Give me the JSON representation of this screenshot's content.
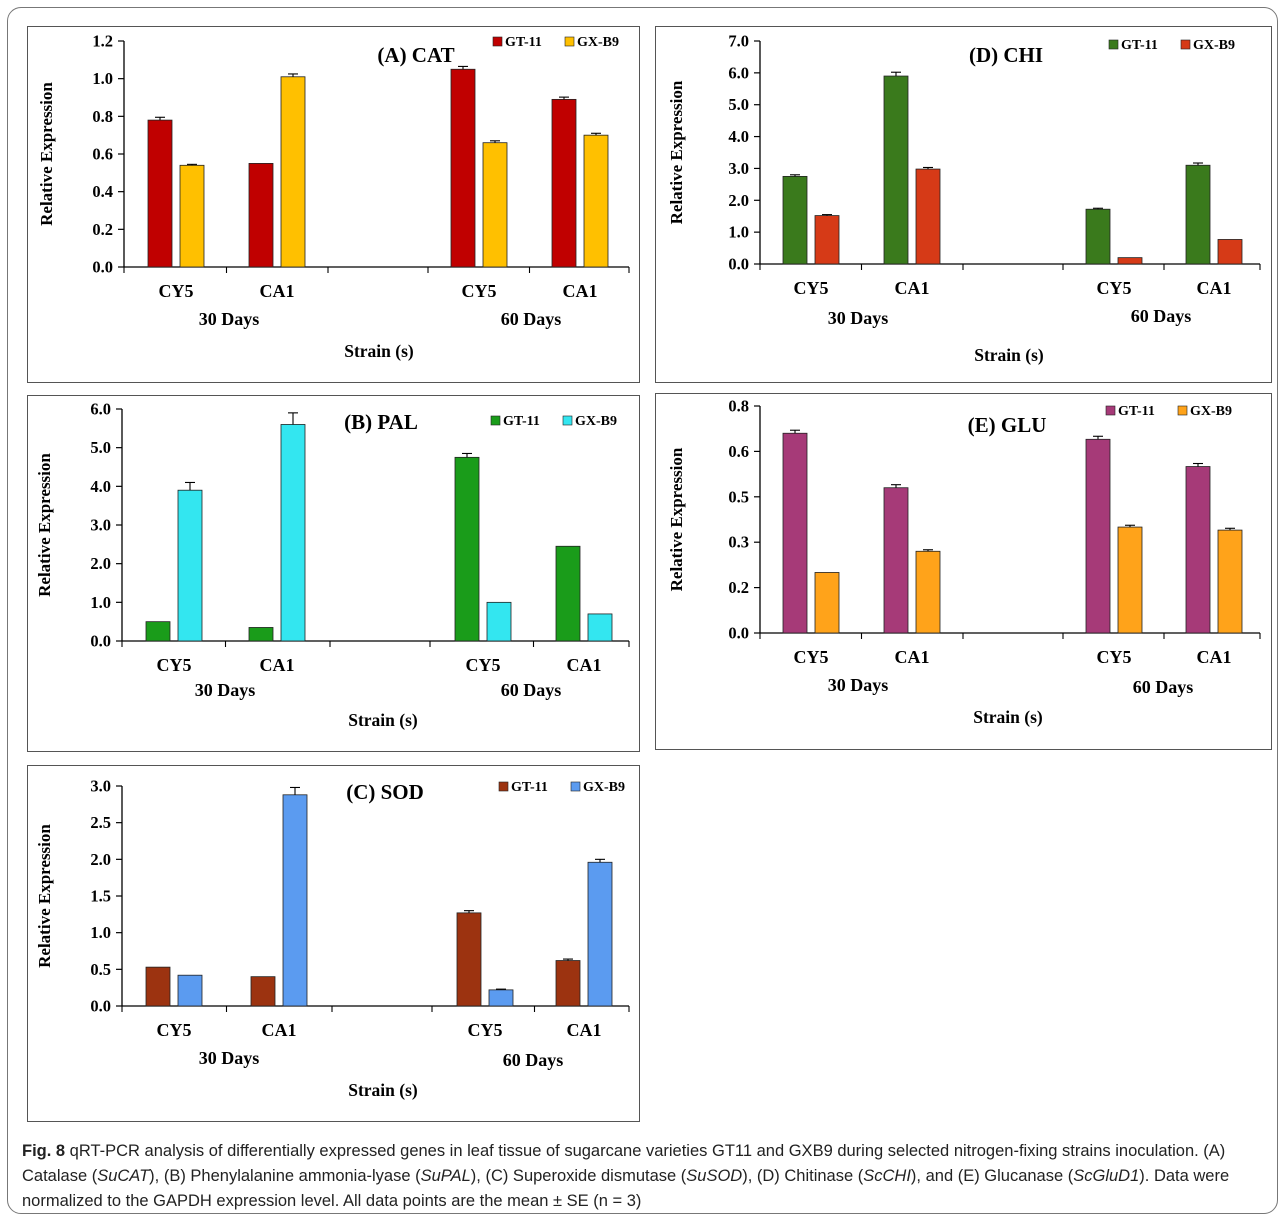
{
  "figure": {
    "caption": {
      "label": "Fig. 8",
      "parts": [
        {
          "t": " qRT-PCR analysis of differentially expressed genes in leaf tissue of sugarcane varieties GT11 and GXB9 during selected nitrogen-fixing strains inoculation. (A) Catalase (",
          "i": false
        },
        {
          "t": "SuCAT",
          "i": true
        },
        {
          "t": "), (B) Phenylalanine ammonia-lyase (",
          "i": false
        },
        {
          "t": "SuPAL",
          "i": true
        },
        {
          "t": "), (C) Superoxide dismutase (",
          "i": false
        },
        {
          "t": "SuSOD",
          "i": true
        },
        {
          "t": "), (D) Chitinase (",
          "i": false
        },
        {
          "t": "ScCHI",
          "i": true
        },
        {
          "t": "), and (E) Glucanase (",
          "i": false
        },
        {
          "t": "ScGluD1",
          "i": true
        },
        {
          "t": "). Data were normalized to the GAPDH expression level. All data points are the mean ± SE (n = 3)",
          "i": false
        }
      ]
    }
  },
  "chart_data": [
    {
      "id": "A",
      "type": "bar",
      "title": "(A) CAT",
      "ylabel": "Relative Expression",
      "xlabel": "Strain  (s)",
      "groups": [
        "30 Days",
        "60 Days"
      ],
      "categories": [
        "CY5",
        "CA1",
        "CY5",
        "CA1"
      ],
      "ylim": [
        0,
        1.2
      ],
      "yticks": [
        "0.0",
        "0.2",
        "0.4",
        "0.6",
        "0.8",
        "1.0",
        "1.2"
      ],
      "series": [
        {
          "name": "GT-11",
          "color": "#c00000",
          "values": [
            0.78,
            0.55,
            1.05,
            0.89
          ],
          "errors": [
            0.015,
            0.0,
            0.015,
            0.012
          ]
        },
        {
          "name": "GX-B9",
          "color": "#ffc000",
          "values": [
            0.54,
            1.01,
            0.66,
            0.7
          ],
          "errors": [
            0.005,
            0.015,
            0.01,
            0.01
          ]
        }
      ]
    },
    {
      "id": "B",
      "type": "bar",
      "title": "(B) PAL",
      "ylabel": "Relative Expression",
      "xlabel": "Strain  (s)",
      "groups": [
        "30 Days",
        "60 Days"
      ],
      "categories": [
        "CY5",
        "CA1",
        "CY5",
        "CA1"
      ],
      "ylim": [
        0,
        6.0
      ],
      "yticks": [
        "0.0",
        "1.0",
        "2.0",
        "3.0",
        "4.0",
        "5.0",
        "6.0"
      ],
      "series": [
        {
          "name": "GT-11",
          "color": "#1a9c1a",
          "values": [
            0.5,
            0.35,
            4.75,
            2.45
          ],
          "errors": [
            0.0,
            0.0,
            0.1,
            0.0
          ]
        },
        {
          "name": "GX-B9",
          "color": "#33e6f0",
          "values": [
            3.9,
            5.6,
            1.0,
            0.7
          ],
          "errors": [
            0.2,
            0.3,
            0.0,
            0.0
          ]
        }
      ]
    },
    {
      "id": "C",
      "type": "bar",
      "title": "(C) SOD",
      "ylabel": "Relative Expression",
      "xlabel": "Strain  (s)",
      "groups": [
        "30 Days",
        "60 Days"
      ],
      "categories": [
        "CY5",
        "CA1",
        "CY5",
        "CA1"
      ],
      "ylim": [
        0,
        3.0
      ],
      "yticks": [
        "0.0",
        "0.5",
        "1.0",
        "1.5",
        "2.0",
        "2.5",
        "3.0"
      ],
      "series": [
        {
          "name": "GT-11",
          "color": "#9c3310",
          "values": [
            0.53,
            0.4,
            1.27,
            0.62
          ],
          "errors": [
            0.0,
            0.0,
            0.03,
            0.02
          ]
        },
        {
          "name": "GX-B9",
          "color": "#5b9bf0",
          "values": [
            0.42,
            2.88,
            0.22,
            1.96
          ],
          "errors": [
            0.0,
            0.1,
            0.01,
            0.04
          ]
        }
      ]
    },
    {
      "id": "D",
      "type": "bar",
      "title": "(D) CHI",
      "ylabel": "Relative Expression",
      "xlabel": "Strain  (s)",
      "groups": [
        "30 Days",
        "60 Days"
      ],
      "categories": [
        "CY5",
        "CA1",
        "CY5",
        "CA1"
      ],
      "ylim": [
        0,
        7.0
      ],
      "yticks": [
        "0.0",
        "1.0",
        "2.0",
        "3.0",
        "4.0",
        "5.0",
        "6.0",
        "7.0"
      ],
      "series": [
        {
          "name": "GT-11",
          "color": "#3a7a1c",
          "values": [
            2.75,
            5.9,
            1.72,
            3.1
          ],
          "errors": [
            0.05,
            0.12,
            0.03,
            0.07
          ]
        },
        {
          "name": "GX-B9",
          "color": "#d63a17",
          "values": [
            1.52,
            2.98,
            0.2,
            0.77
          ],
          "errors": [
            0.03,
            0.05,
            0.0,
            0.0
          ]
        }
      ]
    },
    {
      "id": "E",
      "type": "bar",
      "title": "(E) GLU",
      "ylabel": "Relative Expression",
      "xlabel": "Strain  (s)",
      "groups": [
        "30 Days",
        "60 Days"
      ],
      "categories": [
        "CY5",
        "CA1",
        "CY5",
        "CA1"
      ],
      "ylim": [
        0,
        0.75
      ],
      "yticks": [
        "0.0",
        "0.2",
        "0.3",
        "0.5",
        "0.6",
        "0.8"
      ],
      "series": [
        {
          "name": "GT-11",
          "color": "#a63a78",
          "values": [
            0.66,
            0.48,
            0.64,
            0.55
          ],
          "errors": [
            0.01,
            0.01,
            0.01,
            0.01
          ]
        },
        {
          "name": "GX-B9",
          "color": "#ffa31a",
          "values": [
            0.2,
            0.27,
            0.35,
            0.34
          ],
          "errors": [
            0.0,
            0.005,
            0.006,
            0.006
          ]
        }
      ]
    }
  ]
}
